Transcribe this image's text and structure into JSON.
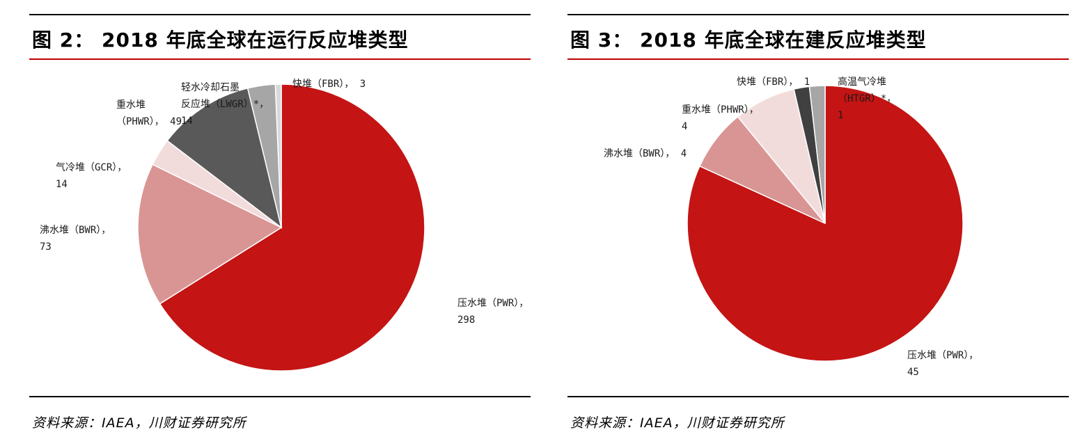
{
  "charts": [
    {
      "title": "图 2：  2018 年底全球在运行反应堆类型",
      "source": "资料来源：IAEA，川财证券研究所"
    },
    {
      "title": "图 3：  2018 年底全球在建反应堆类型",
      "source": "资料来源：IAEA，川财证券研究所"
    }
  ],
  "chart_data": [
    {
      "type": "pie",
      "title": "图 2：  2018 年底全球在运行反应堆类型",
      "slices": [
        {
          "label": "压水堆（PWR），",
          "value": 298,
          "color": "#c41414"
        },
        {
          "label": "沸水堆（BWR），",
          "value": 73,
          "color": "#d99594"
        },
        {
          "label": "气冷堆（GCR），",
          "value": 14,
          "color": "#f2dcdb"
        },
        {
          "label": "重水堆（PHWR），",
          "value": 49,
          "color": "#595959"
        },
        {
          "label": "轻水冷却石墨反应堆（LWGR）*，",
          "value": 14,
          "color": "#a6a6a6"
        },
        {
          "label": "快堆（FBR），",
          "value": 3,
          "color": "#d9d9d9"
        }
      ]
    },
    {
      "type": "pie",
      "title": "图 3：  2018 年底全球在建反应堆类型",
      "slices": [
        {
          "label": "压水堆（PWR），",
          "value": 45,
          "color": "#c41414"
        },
        {
          "label": "沸水堆（BWR），",
          "value": 4,
          "color": "#d99594"
        },
        {
          "label": "重水堆（PHWR），",
          "value": 4,
          "color": "#f2dcdb"
        },
        {
          "label": "快堆（FBR），",
          "value": 1,
          "color": "#404040"
        },
        {
          "label": "高温气冷堆（HTGR）*，",
          "value": 1,
          "color": "#a6a6a6"
        }
      ]
    }
  ]
}
